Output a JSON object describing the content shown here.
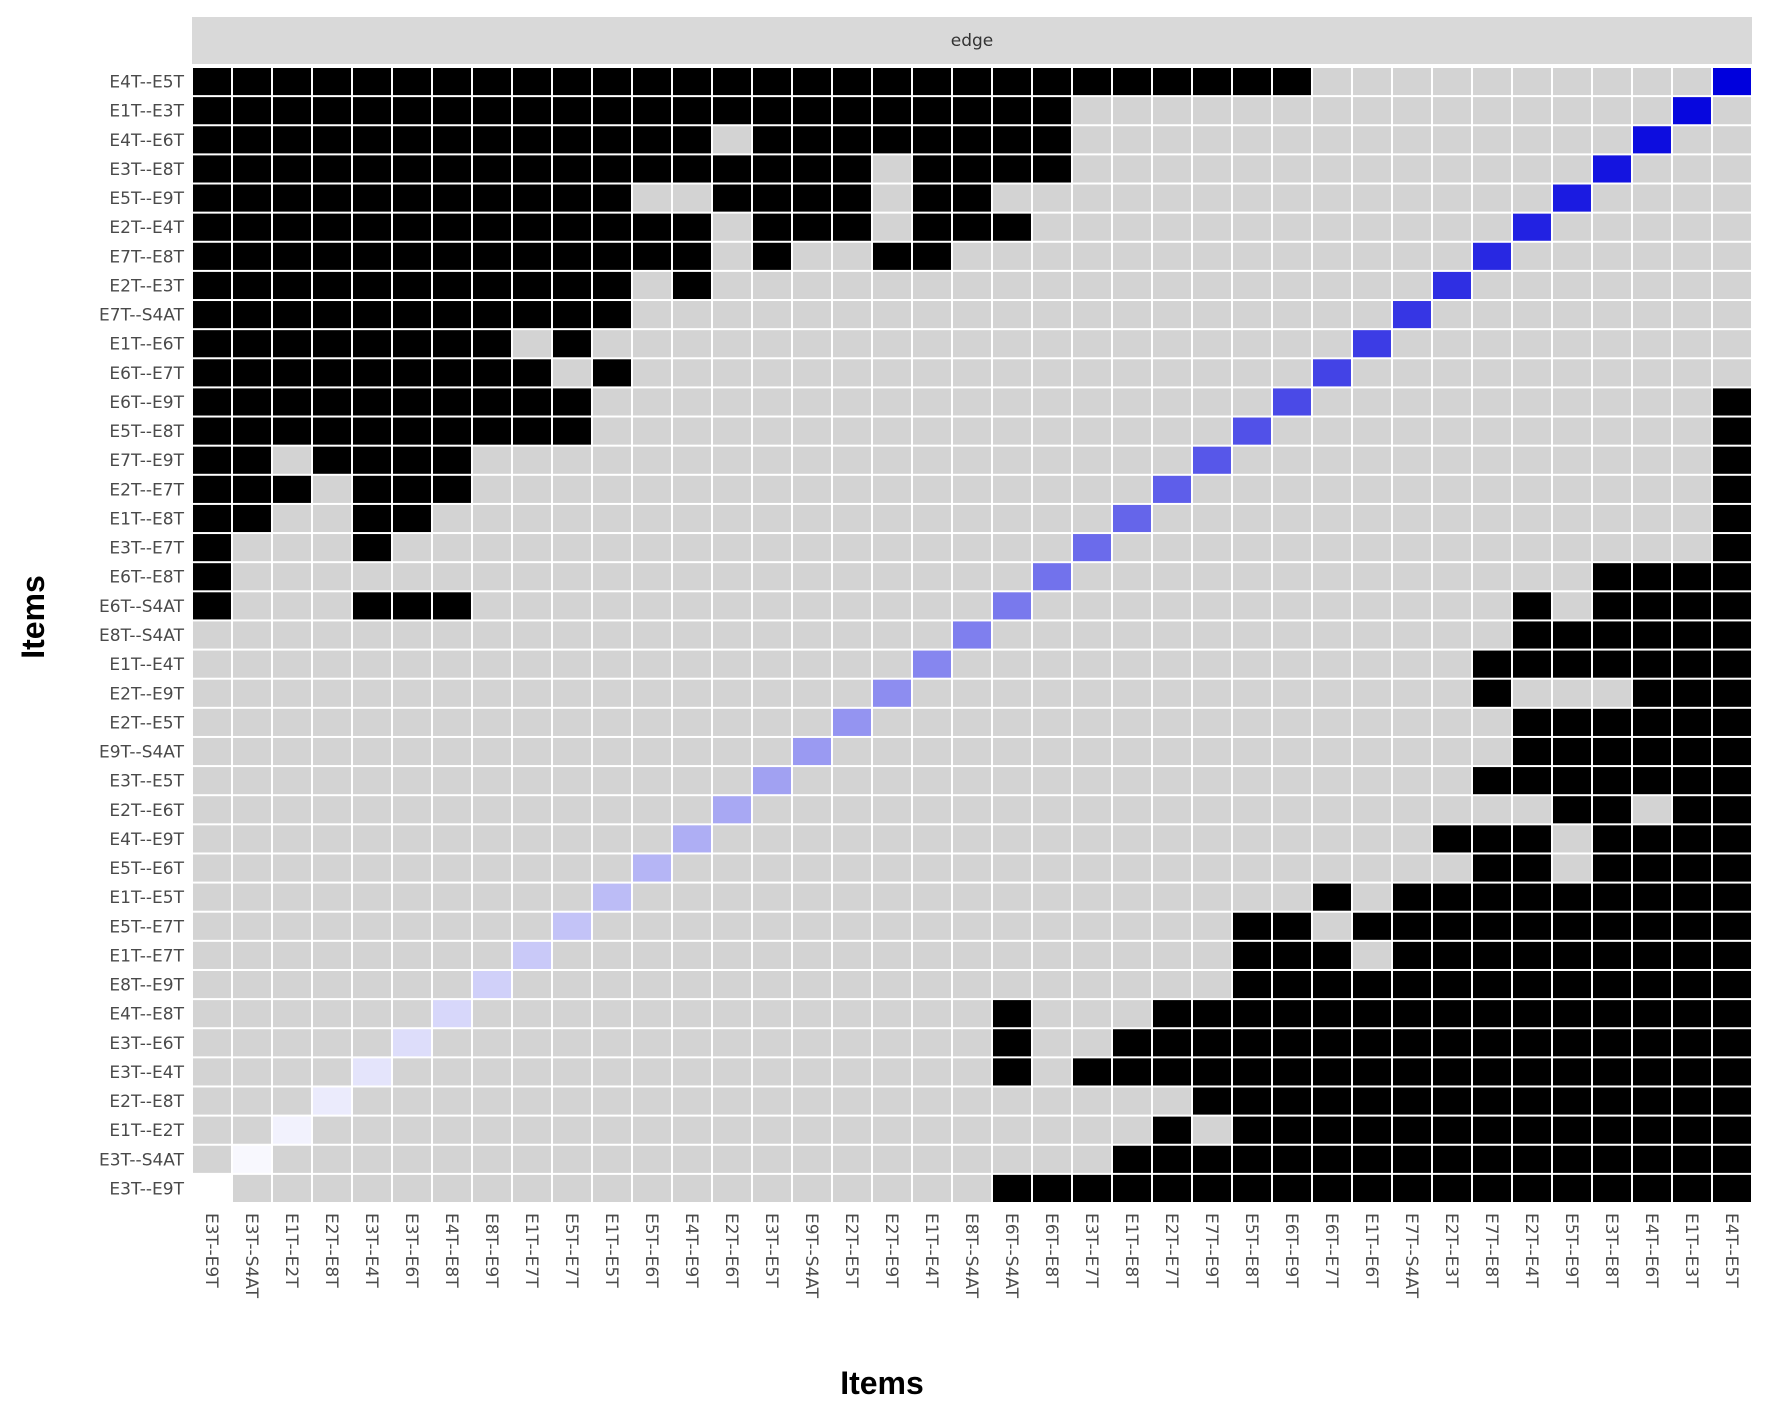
{
  "chart_data": {
    "type": "heatmap",
    "strip_label": "edge",
    "x_label": "Items",
    "y_label": "Items",
    "color_low": "#d3d3d3",
    "color_high": "#000000",
    "diagonal_color": "#0000dd",
    "y_categories": [
      "E4T--E5T",
      "E1T--E3T",
      "E4T--E6T",
      "E3T--E8T",
      "E5T--E9T",
      "E2T--E4T",
      "E7T--E8T",
      "E2T--E3T",
      "E7T--S4AT",
      "E1T--E6T",
      "E6T--E7T",
      "E6T--E9T",
      "E5T--E8T",
      "E7T--E9T",
      "E2T--E7T",
      "E1T--E8T",
      "E3T--E7T",
      "E6T--E8T",
      "E6T--S4AT",
      "E8T--S4AT",
      "E1T--E4T",
      "E2T--E9T",
      "E2T--E5T",
      "E9T--S4AT",
      "E3T--E5T",
      "E2T--E6T",
      "E4T--E9T",
      "E5T--E6T",
      "E1T--E5T",
      "E5T--E7T",
      "E1T--E7T",
      "E8T--E9T",
      "E4T--E8T",
      "E3T--E6T",
      "E3T--E4T",
      "E2T--E8T",
      "E1T--E2T",
      "E3T--S4AT",
      "E3T--E9T"
    ],
    "x_categories": [
      "E3T--E9T",
      "E3T--S4AT",
      "E1T--E2T",
      "E2T--E8T",
      "E3T--E4T",
      "E3T--E6T",
      "E4T--E8T",
      "E8T--E9T",
      "E1T--E7T",
      "E5T--E7T",
      "E1T--E5T",
      "E5T--E6T",
      "E4T--E9T",
      "E2T--E6T",
      "E3T--E5T",
      "E9T--S4AT",
      "E2T--E5T",
      "E2T--E9T",
      "E1T--E4T",
      "E8T--S4AT",
      "E6T--S4AT",
      "E6T--E8T",
      "E3T--E7T",
      "E1T--E8T",
      "E2T--E7T",
      "E7T--E9T",
      "E5T--E8T",
      "E6T--E9T",
      "E6T--E7T",
      "E1T--E6T",
      "E7T--S4AT",
      "E2T--E3T",
      "E7T--E8T",
      "E2T--E4T",
      "E5T--E9T",
      "E3T--E8T",
      "E4T--E6T",
      "E1T--E3T",
      "E4T--E5T"
    ],
    "values": [
      [
        1,
        1,
        1,
        1,
        1,
        1,
        1,
        1,
        1,
        1,
        1,
        1,
        1,
        1,
        1,
        1,
        1,
        1,
        1,
        1,
        1,
        1,
        1,
        1,
        1,
        1,
        1,
        1,
        0,
        0,
        0,
        0,
        0,
        0,
        0,
        0,
        0,
        0,
        null
      ],
      [
        1,
        1,
        1,
        1,
        1,
        1,
        1,
        1,
        1,
        1,
        1,
        1,
        1,
        1,
        1,
        1,
        1,
        1,
        1,
        1,
        1,
        1,
        0,
        0,
        0,
        0,
        0,
        0,
        0,
        0,
        0,
        0,
        0,
        0,
        0,
        0,
        0,
        null,
        0
      ],
      [
        1,
        1,
        1,
        1,
        1,
        1,
        1,
        1,
        1,
        1,
        1,
        1,
        1,
        0,
        1,
        1,
        1,
        1,
        1,
        1,
        1,
        1,
        0,
        0,
        0,
        0,
        0,
        0,
        0,
        0,
        0,
        0,
        0,
        0,
        0,
        0,
        null,
        0,
        0
      ],
      [
        1,
        1,
        1,
        1,
        1,
        1,
        1,
        1,
        1,
        1,
        1,
        1,
        1,
        1,
        1,
        1,
        1,
        0,
        1,
        1,
        1,
        1,
        0,
        0,
        0,
        0,
        0,
        0,
        0,
        0,
        0,
        0,
        0,
        0,
        0,
        null,
        0,
        0,
        0
      ],
      [
        1,
        1,
        1,
        1,
        1,
        1,
        1,
        1,
        1,
        1,
        1,
        0,
        0,
        1,
        1,
        1,
        1,
        0,
        1,
        1,
        0,
        0,
        0,
        0,
        0,
        0,
        0,
        0,
        0,
        0,
        0,
        0,
        0,
        0,
        null,
        0,
        0,
        0,
        0
      ],
      [
        1,
        1,
        1,
        1,
        1,
        1,
        1,
        1,
        1,
        1,
        1,
        1,
        1,
        0,
        1,
        1,
        1,
        0,
        1,
        1,
        1,
        0,
        0,
        0,
        0,
        0,
        0,
        0,
        0,
        0,
        0,
        0,
        0,
        null,
        0,
        0,
        0,
        0,
        0
      ],
      [
        1,
        1,
        1,
        1,
        1,
        1,
        1,
        1,
        1,
        1,
        1,
        1,
        1,
        0,
        1,
        0,
        0,
        1,
        1,
        0,
        0,
        0,
        0,
        0,
        0,
        0,
        0,
        0,
        0,
        0,
        0,
        0,
        null,
        0,
        0,
        0,
        0,
        0,
        0
      ],
      [
        1,
        1,
        1,
        1,
        1,
        1,
        1,
        1,
        1,
        1,
        1,
        0,
        1,
        0,
        0,
        0,
        0,
        0,
        0,
        0,
        0,
        0,
        0,
        0,
        0,
        0,
        0,
        0,
        0,
        0,
        0,
        null,
        0,
        0,
        0,
        0,
        0,
        0,
        0
      ],
      [
        1,
        1,
        1,
        1,
        1,
        1,
        1,
        1,
        1,
        1,
        1,
        0,
        0,
        0,
        0,
        0,
        0,
        0,
        0,
        0,
        0,
        0,
        0,
        0,
        0,
        0,
        0,
        0,
        0,
        0,
        null,
        0,
        0,
        0,
        0,
        0,
        0,
        0,
        0
      ],
      [
        1,
        1,
        1,
        1,
        1,
        1,
        1,
        1,
        0,
        1,
        0,
        0,
        0,
        0,
        0,
        0,
        0,
        0,
        0,
        0,
        0,
        0,
        0,
        0,
        0,
        0,
        0,
        0,
        0,
        null,
        0,
        0,
        0,
        0,
        0,
        0,
        0,
        0,
        0
      ],
      [
        1,
        1,
        1,
        1,
        1,
        1,
        1,
        1,
        1,
        0,
        1,
        0,
        0,
        0,
        0,
        0,
        0,
        0,
        0,
        0,
        0,
        0,
        0,
        0,
        0,
        0,
        0,
        0,
        null,
        0,
        0,
        0,
        0,
        0,
        0,
        0,
        0,
        0,
        0
      ],
      [
        1,
        1,
        1,
        1,
        1,
        1,
        1,
        1,
        1,
        1,
        0,
        0,
        0,
        0,
        0,
        0,
        0,
        0,
        0,
        0,
        0,
        0,
        0,
        0,
        0,
        0,
        0,
        null,
        0,
        0,
        0,
        0,
        0,
        0,
        0,
        0,
        0,
        0,
        1
      ],
      [
        1,
        1,
        1,
        1,
        1,
        1,
        1,
        1,
        1,
        1,
        0,
        0,
        0,
        0,
        0,
        0,
        0,
        0,
        0,
        0,
        0,
        0,
        0,
        0,
        0,
        0,
        null,
        0,
        0,
        0,
        0,
        0,
        0,
        0,
        0,
        0,
        0,
        0,
        1
      ],
      [
        1,
        1,
        0,
        1,
        1,
        1,
        1,
        0,
        0,
        0,
        0,
        0,
        0,
        0,
        0,
        0,
        0,
        0,
        0,
        0,
        0,
        0,
        0,
        0,
        0,
        null,
        0,
        0,
        0,
        0,
        0,
        0,
        0,
        0,
        0,
        0,
        0,
        0,
        1
      ],
      [
        1,
        1,
        1,
        0,
        1,
        1,
        1,
        0,
        0,
        0,
        0,
        0,
        0,
        0,
        0,
        0,
        0,
        0,
        0,
        0,
        0,
        0,
        0,
        0,
        null,
        0,
        0,
        0,
        0,
        0,
        0,
        0,
        0,
        0,
        0,
        0,
        0,
        0,
        1
      ],
      [
        1,
        1,
        0,
        0,
        1,
        1,
        0,
        0,
        0,
        0,
        0,
        0,
        0,
        0,
        0,
        0,
        0,
        0,
        0,
        0,
        0,
        0,
        0,
        null,
        0,
        0,
        0,
        0,
        0,
        0,
        0,
        0,
        0,
        0,
        0,
        0,
        0,
        0,
        1
      ],
      [
        1,
        0,
        0,
        0,
        1,
        0,
        0,
        0,
        0,
        0,
        0,
        0,
        0,
        0,
        0,
        0,
        0,
        0,
        0,
        0,
        0,
        0,
        null,
        0,
        0,
        0,
        0,
        0,
        0,
        0,
        0,
        0,
        0,
        0,
        0,
        0,
        0,
        0,
        1
      ],
      [
        1,
        0,
        0,
        0,
        0,
        0,
        0,
        0,
        0,
        0,
        0,
        0,
        0,
        0,
        0,
        0,
        0,
        0,
        0,
        0,
        0,
        null,
        0,
        0,
        0,
        0,
        0,
        0,
        0,
        0,
        0,
        0,
        0,
        0,
        0,
        1,
        1,
        1,
        1
      ],
      [
        1,
        0,
        0,
        0,
        1,
        1,
        1,
        0,
        0,
        0,
        0,
        0,
        0,
        0,
        0,
        0,
        0,
        0,
        0,
        0,
        null,
        0,
        0,
        0,
        0,
        0,
        0,
        0,
        0,
        0,
        0,
        0,
        0,
        1,
        0,
        1,
        1,
        1,
        1
      ],
      [
        0,
        0,
        0,
        0,
        0,
        0,
        0,
        0,
        0,
        0,
        0,
        0,
        0,
        0,
        0,
        0,
        0,
        0,
        0,
        null,
        0,
        0,
        0,
        0,
        0,
        0,
        0,
        0,
        0,
        0,
        0,
        0,
        0,
        1,
        1,
        1,
        1,
        1,
        1
      ],
      [
        0,
        0,
        0,
        0,
        0,
        0,
        0,
        0,
        0,
        0,
        0,
        0,
        0,
        0,
        0,
        0,
        0,
        0,
        null,
        0,
        0,
        0,
        0,
        0,
        0,
        0,
        0,
        0,
        0,
        0,
        0,
        0,
        1,
        1,
        1,
        1,
        1,
        1,
        1
      ],
      [
        0,
        0,
        0,
        0,
        0,
        0,
        0,
        0,
        0,
        0,
        0,
        0,
        0,
        0,
        0,
        0,
        0,
        null,
        0,
        0,
        0,
        0,
        0,
        0,
        0,
        0,
        0,
        0,
        0,
        0,
        0,
        0,
        1,
        0,
        0,
        0,
        1,
        1,
        1
      ],
      [
        0,
        0,
        0,
        0,
        0,
        0,
        0,
        0,
        0,
        0,
        0,
        0,
        0,
        0,
        0,
        0,
        null,
        0,
        0,
        0,
        0,
        0,
        0,
        0,
        0,
        0,
        0,
        0,
        0,
        0,
        0,
        0,
        0,
        1,
        1,
        1,
        1,
        1,
        1
      ],
      [
        0,
        0,
        0,
        0,
        0,
        0,
        0,
        0,
        0,
        0,
        0,
        0,
        0,
        0,
        0,
        null,
        0,
        0,
        0,
        0,
        0,
        0,
        0,
        0,
        0,
        0,
        0,
        0,
        0,
        0,
        0,
        0,
        0,
        1,
        1,
        1,
        1,
        1,
        1
      ],
      [
        0,
        0,
        0,
        0,
        0,
        0,
        0,
        0,
        0,
        0,
        0,
        0,
        0,
        0,
        null,
        0,
        0,
        0,
        0,
        0,
        0,
        0,
        0,
        0,
        0,
        0,
        0,
        0,
        0,
        0,
        0,
        0,
        1,
        1,
        1,
        1,
        1,
        1,
        1
      ],
      [
        0,
        0,
        0,
        0,
        0,
        0,
        0,
        0,
        0,
        0,
        0,
        0,
        0,
        null,
        0,
        0,
        0,
        0,
        0,
        0,
        0,
        0,
        0,
        0,
        0,
        0,
        0,
        0,
        0,
        0,
        0,
        0,
        0,
        0,
        1,
        1,
        0,
        1,
        1
      ],
      [
        0,
        0,
        0,
        0,
        0,
        0,
        0,
        0,
        0,
        0,
        0,
        0,
        null,
        0,
        0,
        0,
        0,
        0,
        0,
        0,
        0,
        0,
        0,
        0,
        0,
        0,
        0,
        0,
        0,
        0,
        0,
        1,
        1,
        1,
        0,
        1,
        1,
        1,
        1
      ],
      [
        0,
        0,
        0,
        0,
        0,
        0,
        0,
        0,
        0,
        0,
        0,
        null,
        0,
        0,
        0,
        0,
        0,
        0,
        0,
        0,
        0,
        0,
        0,
        0,
        0,
        0,
        0,
        0,
        0,
        0,
        0,
        0,
        1,
        1,
        0,
        1,
        1,
        1,
        1
      ],
      [
        0,
        0,
        0,
        0,
        0,
        0,
        0,
        0,
        0,
        0,
        null,
        0,
        0,
        0,
        0,
        0,
        0,
        0,
        0,
        0,
        0,
        0,
        0,
        0,
        0,
        0,
        0,
        0,
        1,
        0,
        1,
        1,
        1,
        1,
        1,
        1,
        1,
        1,
        1
      ],
      [
        0,
        0,
        0,
        0,
        0,
        0,
        0,
        0,
        0,
        null,
        0,
        0,
        0,
        0,
        0,
        0,
        0,
        0,
        0,
        0,
        0,
        0,
        0,
        0,
        0,
        0,
        1,
        1,
        0,
        1,
        1,
        1,
        1,
        1,
        1,
        1,
        1,
        1,
        1
      ],
      [
        0,
        0,
        0,
        0,
        0,
        0,
        0,
        0,
        null,
        0,
        0,
        0,
        0,
        0,
        0,
        0,
        0,
        0,
        0,
        0,
        0,
        0,
        0,
        0,
        0,
        0,
        1,
        1,
        1,
        0,
        1,
        1,
        1,
        1,
        1,
        1,
        1,
        1,
        1
      ],
      [
        0,
        0,
        0,
        0,
        0,
        0,
        0,
        null,
        0,
        0,
        0,
        0,
        0,
        0,
        0,
        0,
        0,
        0,
        0,
        0,
        0,
        0,
        0,
        0,
        0,
        0,
        1,
        1,
        1,
        1,
        1,
        1,
        1,
        1,
        1,
        1,
        1,
        1,
        1
      ],
      [
        0,
        0,
        0,
        0,
        0,
        0,
        null,
        0,
        0,
        0,
        0,
        0,
        0,
        0,
        0,
        0,
        0,
        0,
        0,
        0,
        1,
        0,
        0,
        0,
        1,
        1,
        1,
        1,
        1,
        1,
        1,
        1,
        1,
        1,
        1,
        1,
        1,
        1,
        1
      ],
      [
        0,
        0,
        0,
        0,
        0,
        null,
        0,
        0,
        0,
        0,
        0,
        0,
        0,
        0,
        0,
        0,
        0,
        0,
        0,
        0,
        1,
        0,
        0,
        1,
        1,
        1,
        1,
        1,
        1,
        1,
        1,
        1,
        1,
        1,
        1,
        1,
        1,
        1,
        1
      ],
      [
        0,
        0,
        0,
        0,
        null,
        0,
        0,
        0,
        0,
        0,
        0,
        0,
        0,
        0,
        0,
        0,
        0,
        0,
        0,
        0,
        1,
        0,
        1,
        1,
        1,
        1,
        1,
        1,
        1,
        1,
        1,
        1,
        1,
        1,
        1,
        1,
        1,
        1,
        1
      ],
      [
        0,
        0,
        0,
        null,
        0,
        0,
        0,
        0,
        0,
        0,
        0,
        0,
        0,
        0,
        0,
        0,
        0,
        0,
        0,
        0,
        0,
        0,
        0,
        0,
        0,
        1,
        1,
        1,
        1,
        1,
        1,
        1,
        1,
        1,
        1,
        1,
        1,
        1,
        1
      ],
      [
        0,
        0,
        null,
        0,
        0,
        0,
        0,
        0,
        0,
        0,
        0,
        0,
        0,
        0,
        0,
        0,
        0,
        0,
        0,
        0,
        0,
        0,
        0,
        0,
        1,
        0,
        1,
        1,
        1,
        1,
        1,
        1,
        1,
        1,
        1,
        1,
        1,
        1,
        1
      ],
      [
        0,
        null,
        0,
        0,
        0,
        0,
        0,
        0,
        0,
        0,
        0,
        0,
        0,
        0,
        0,
        0,
        0,
        0,
        0,
        0,
        0,
        0,
        0,
        1,
        1,
        1,
        1,
        1,
        1,
        1,
        1,
        1,
        1,
        1,
        1,
        1,
        1,
        1,
        1
      ],
      [
        null,
        0,
        0,
        0,
        0,
        0,
        0,
        0,
        0,
        0,
        0,
        0,
        0,
        0,
        0,
        0,
        0,
        0,
        0,
        0,
        1,
        1,
        1,
        1,
        1,
        1,
        1,
        1,
        1,
        1,
        1,
        1,
        1,
        1,
        1,
        1,
        1,
        1,
        1
      ]
    ]
  }
}
